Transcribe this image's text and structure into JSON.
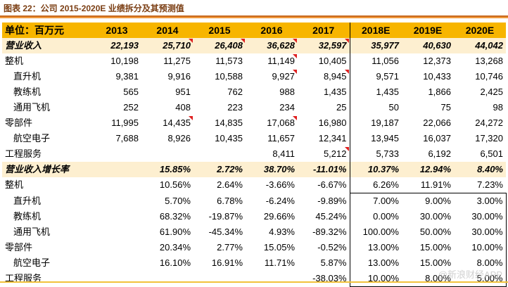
{
  "caption": "图表 22：公司 2015-2020E 业绩拆分及其预测值",
  "header": {
    "unit_label": "单位：百万元",
    "years": [
      "2013",
      "2014",
      "2015",
      "2016",
      "2017",
      "2018E",
      "2019E",
      "2020E"
    ]
  },
  "rows": [
    {
      "label": "营业收入",
      "values": [
        "22,193",
        "25,710",
        "26,408",
        "36,628",
        "32,597",
        "35,977",
        "40,630",
        "44,042"
      ],
      "flags": [
        1,
        2,
        3,
        4
      ]
    },
    {
      "label": "整机",
      "values": [
        "10,198",
        "11,275",
        "11,573",
        "11,149",
        "10,405",
        "11,056",
        "12,373",
        "13,268"
      ],
      "flags": [
        3
      ]
    },
    {
      "label": "直升机",
      "values": [
        "9,381",
        "9,916",
        "10,588",
        "9,927",
        "8,945",
        "9,571",
        "10,433",
        "10,746"
      ],
      "flags": [
        3,
        4
      ]
    },
    {
      "label": "教练机",
      "values": [
        "565",
        "951",
        "762",
        "988",
        "1,435",
        "1,435",
        "1,866",
        "2,425"
      ],
      "flags": []
    },
    {
      "label": "通用飞机",
      "values": [
        "252",
        "408",
        "223",
        "234",
        "25",
        "50",
        "75",
        "98"
      ],
      "flags": []
    },
    {
      "label": "零部件",
      "values": [
        "11,995",
        "14,435",
        "14,835",
        "17,068",
        "16,980",
        "19,187",
        "22,066",
        "24,272"
      ],
      "flags": [
        1,
        3
      ]
    },
    {
      "label": "航空电子",
      "values": [
        "7,688",
        "8,926",
        "10,435",
        "11,657",
        "12,341",
        "13,945",
        "16,037",
        "17,320"
      ],
      "flags": []
    },
    {
      "label": "工程服务",
      "values": [
        "",
        "",
        "",
        "8,411",
        "5,212",
        "5,733",
        "6,192",
        "6,501"
      ],
      "flags": [
        4
      ]
    },
    {
      "label": "营业收入增长率",
      "values": [
        "",
        "15.85%",
        "2.72%",
        "38.70%",
        "-11.01%",
        "10.37%",
        "12.94%",
        "8.40%"
      ],
      "flags": []
    },
    {
      "label": "整机",
      "values": [
        "",
        "10.56%",
        "2.64%",
        "-3.66%",
        "-6.67%",
        "6.26%",
        "11.91%",
        "7.23%"
      ],
      "flags": []
    },
    {
      "label": "直升机",
      "values": [
        "",
        "5.70%",
        "6.78%",
        "-6.24%",
        "-9.89%",
        "7.00%",
        "9.00%",
        "3.00%"
      ],
      "flags": []
    },
    {
      "label": "教练机",
      "values": [
        "",
        "68.32%",
        "-19.87%",
        "29.66%",
        "45.24%",
        "0.00%",
        "30.00%",
        "30.00%"
      ],
      "flags": []
    },
    {
      "label": "通用飞机",
      "values": [
        "",
        "61.90%",
        "-45.34%",
        "4.93%",
        "-89.32%",
        "100.00%",
        "50.00%",
        "30.00%"
      ],
      "flags": []
    },
    {
      "label": "零部件",
      "values": [
        "",
        "20.34%",
        "2.77%",
        "15.05%",
        "-0.52%",
        "13.00%",
        "15.00%",
        "10.00%"
      ],
      "flags": []
    },
    {
      "label": "航空电子",
      "values": [
        "",
        "16.10%",
        "16.91%",
        "11.71%",
        "5.87%",
        "13.00%",
        "15.00%",
        "8.00%"
      ],
      "flags": []
    },
    {
      "label": "工程服务",
      "values": [
        "",
        "",
        "",
        "",
        "-38.03%",
        "10.00%",
        "8.00%",
        "5.00%"
      ],
      "flags": []
    }
  ],
  "watermark": "@新浪财经APP",
  "colors": {
    "header_bg": "#f7b500",
    "highlight_bg": "#fdefd0",
    "assumption_text": "#1f5fb0",
    "flag": "#e02020"
  }
}
